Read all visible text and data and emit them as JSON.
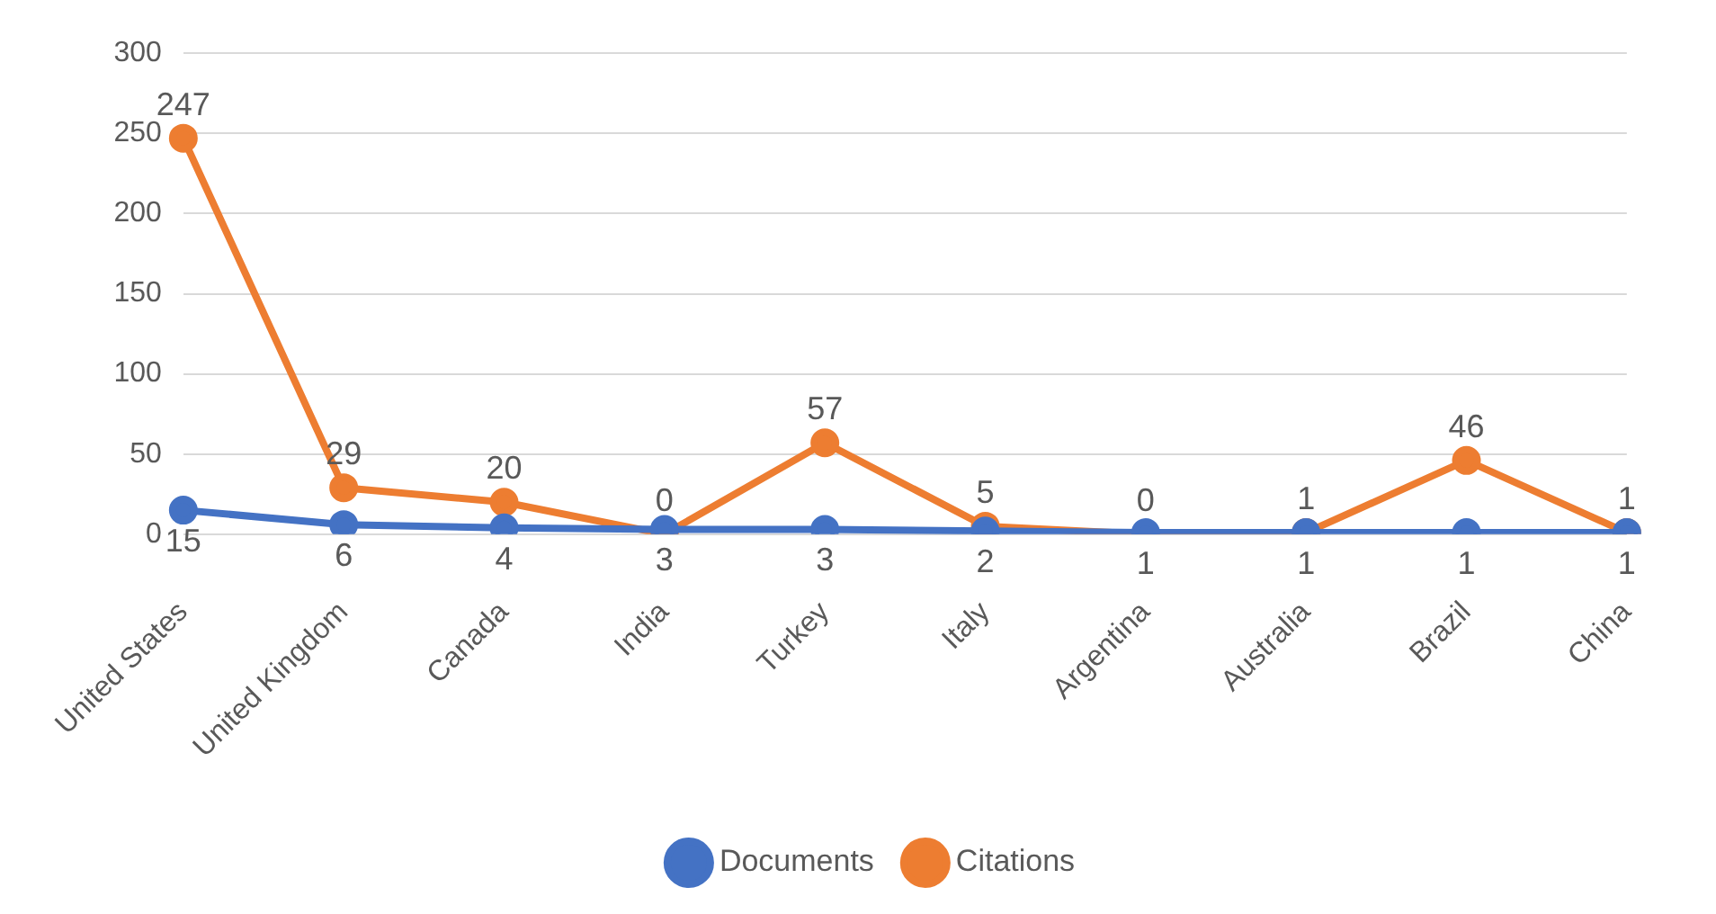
{
  "chart_data": {
    "type": "line",
    "categories": [
      "United States",
      "United Kingdom",
      "Canada",
      "India",
      "Turkey",
      "Italy",
      "Argentina",
      "Australia",
      "Brazil",
      "China"
    ],
    "series": [
      {
        "name": "Documents",
        "color": "#4472c4",
        "values": [
          15,
          6,
          4,
          3,
          3,
          2,
          1,
          1,
          1,
          1
        ]
      },
      {
        "name": "Citations",
        "color": "#ed7d31",
        "values": [
          247,
          29,
          20,
          0,
          57,
          5,
          0,
          1,
          46,
          1
        ]
      }
    ],
    "ylim": [
      0,
      300
    ],
    "yticks": [
      0,
      50,
      100,
      150,
      200,
      250,
      300
    ],
    "grid": "y",
    "legend": "bottom",
    "data_labels": true,
    "marker": "circle",
    "line_style": "solid"
  }
}
